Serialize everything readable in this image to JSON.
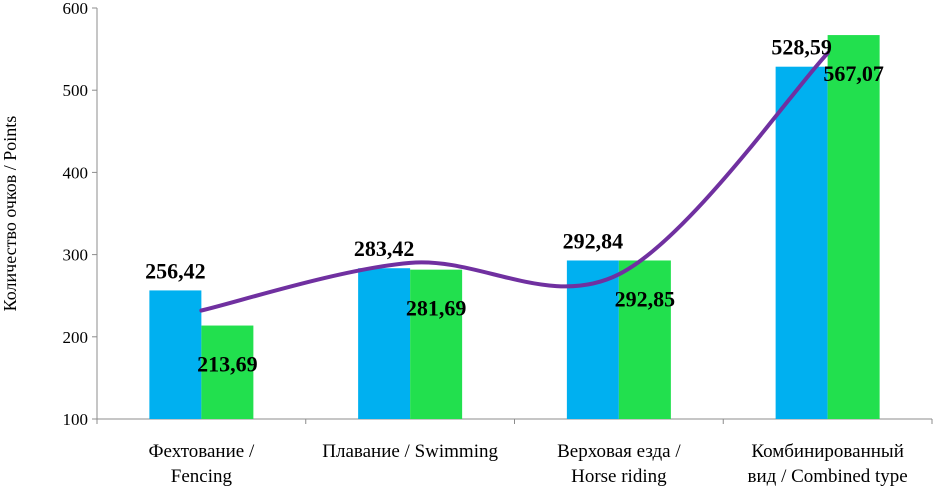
{
  "chart_data": {
    "type": "bar",
    "ylabel": "Количество очков / Points",
    "ylim": [
      100,
      600
    ],
    "yticks": [
      100,
      200,
      300,
      400,
      500,
      600
    ],
    "categories": [
      [
        "Фехтование /",
        "Fencing"
      ],
      [
        "Плавание / Swimming"
      ],
      [
        "Верховая езда /",
        "Horse riding"
      ],
      [
        "Комбинированный",
        "вид / Combined type"
      ]
    ],
    "series": [
      {
        "values": [
          256.42,
          283.42,
          292.84,
          528.59
        ],
        "labels": [
          "256,42",
          "283,42",
          "292,84",
          "528,59"
        ],
        "color": "#00b0f0"
      },
      {
        "values": [
          213.69,
          281.69,
          292.85,
          567.07
        ],
        "labels": [
          "213,69",
          "281,69",
          "292,85",
          "567,07"
        ],
        "color": "#22e04e"
      }
    ],
    "trendline": {
      "type": "polynomial",
      "color": "#7030a0",
      "values": [
        232,
        290,
        276,
        545
      ]
    },
    "grid": false,
    "legend": "none"
  }
}
